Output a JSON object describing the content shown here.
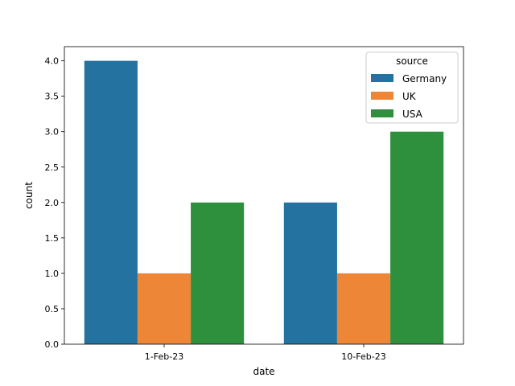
{
  "chart_data": {
    "type": "bar",
    "title": "",
    "xlabel": "date",
    "ylabel": "count",
    "categories": [
      "1-Feb-23",
      "10-Feb-23"
    ],
    "series": [
      {
        "name": "Germany",
        "values": [
          4,
          2
        ],
        "color": "#2372a0"
      },
      {
        "name": "UK",
        "values": [
          1,
          1
        ],
        "color": "#ee8638"
      },
      {
        "name": "USA",
        "values": [
          2,
          3
        ],
        "color": "#2e8f3d"
      }
    ],
    "ylim": [
      0,
      4.2
    ],
    "yticks": [
      0.0,
      0.5,
      1.0,
      1.5,
      2.0,
      2.5,
      3.0,
      3.5,
      4.0
    ],
    "ytick_labels": [
      "0.0",
      "0.5",
      "1.0",
      "1.5",
      "2.0",
      "2.5",
      "3.0",
      "3.5",
      "4.0"
    ],
    "grid": false,
    "legend": {
      "title": "source",
      "placement": "top-right"
    }
  }
}
